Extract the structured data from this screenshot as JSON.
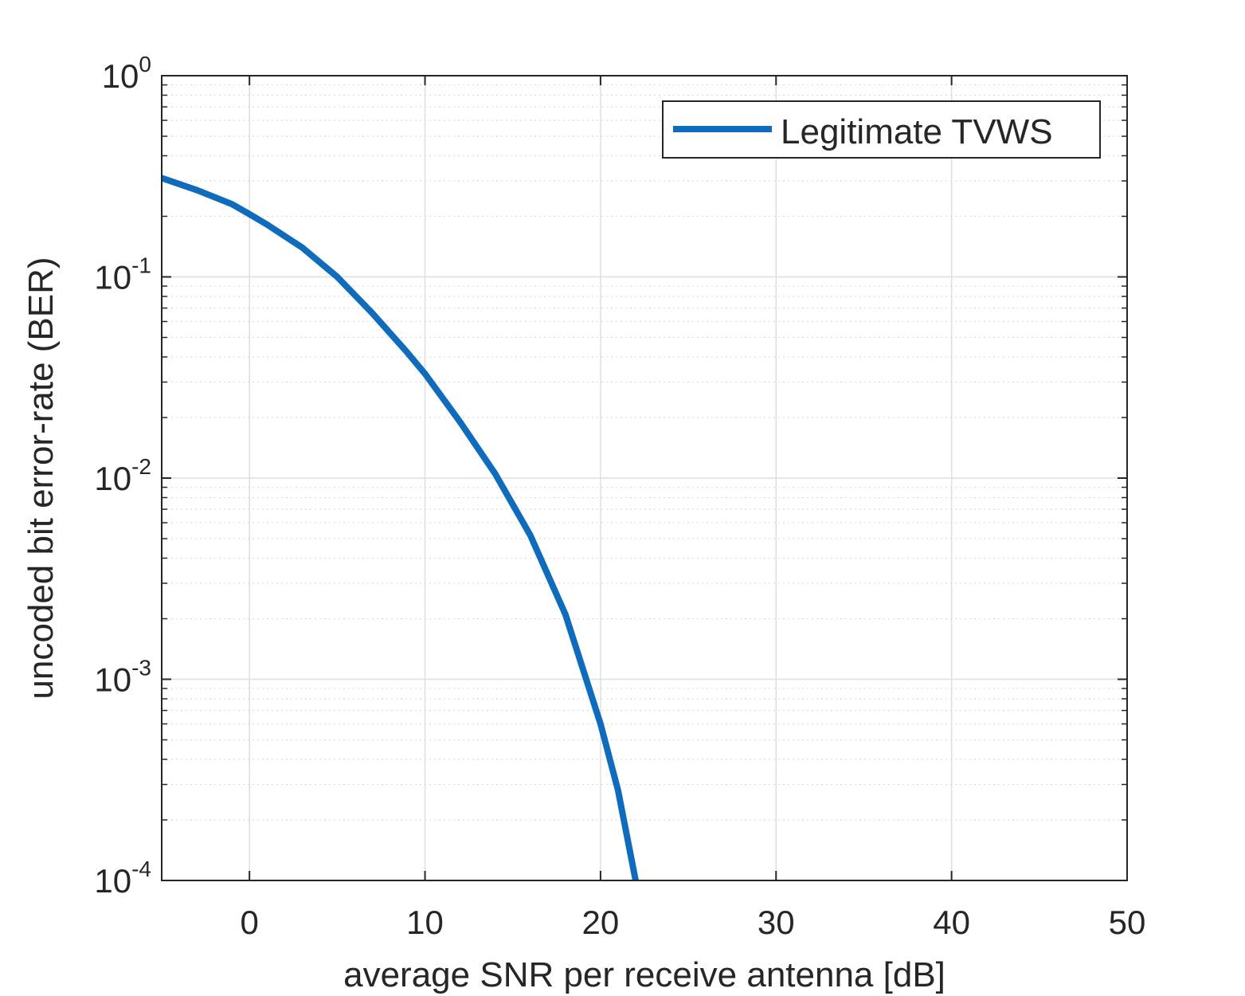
{
  "chart_data": {
    "type": "line",
    "xlabel": "average SNR per receive antenna [dB]",
    "ylabel": "uncoded bit error-rate (BER)",
    "xlim": [
      -5,
      50
    ],
    "ylim": [
      0.0001,
      1
    ],
    "yscale": "log",
    "grid": true,
    "legend_position": "top-right",
    "x_ticks": [
      0,
      10,
      20,
      30,
      40,
      50
    ],
    "x_tick_labels": [
      "0",
      "10",
      "20",
      "30",
      "40",
      "50"
    ],
    "y_ticks": [
      1,
      0.1,
      0.01,
      0.001,
      0.0001
    ],
    "y_tick_labels": [
      {
        "base": "10",
        "exp": "0"
      },
      {
        "base": "10",
        "exp": "-1"
      },
      {
        "base": "10",
        "exp": "-2"
      },
      {
        "base": "10",
        "exp": "-3"
      },
      {
        "base": "10",
        "exp": "-4"
      }
    ],
    "series": [
      {
        "name": "Legitimate TVWS",
        "color": "#0f6cbd",
        "x": [
          -5,
          -3,
          -1,
          0,
          1,
          3,
          5,
          7,
          9,
          10,
          12,
          14,
          16,
          18,
          20,
          21,
          22
        ],
        "y": [
          0.31,
          0.27,
          0.23,
          0.205,
          0.182,
          0.14,
          0.1,
          0.066,
          0.042,
          0.033,
          0.019,
          0.0105,
          0.0052,
          0.0021,
          0.0006,
          0.00028,
          0.0001
        ]
      }
    ]
  }
}
